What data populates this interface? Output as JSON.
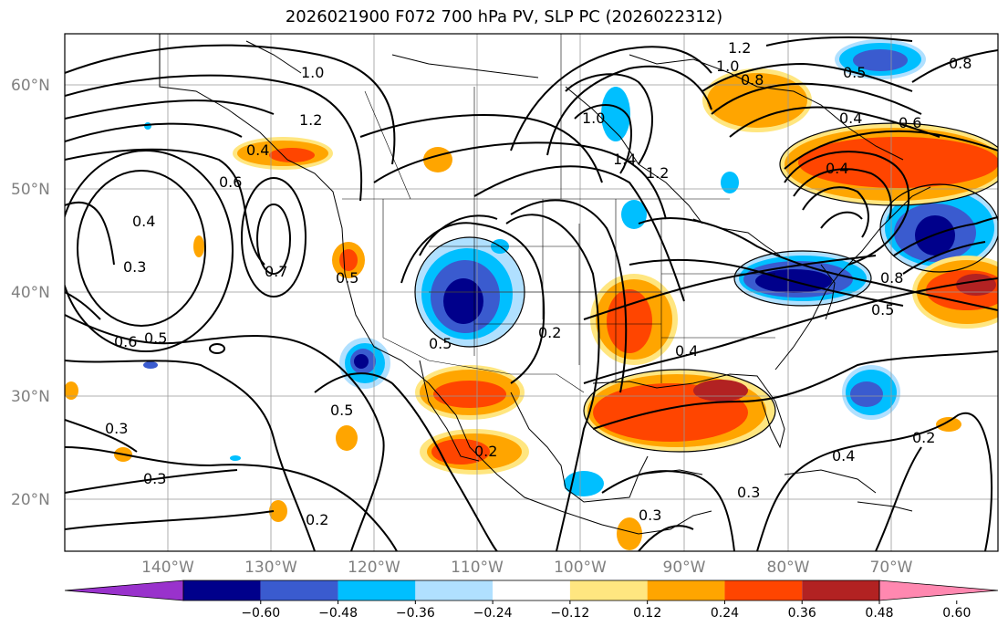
{
  "title": "2026021900 F072 700 hPa PV, SLP PC (2026022312)",
  "lat_labels": [
    "60°N",
    "50°N",
    "40°N",
    "30°N",
    "20°N"
  ],
  "lon_labels": [
    "140°W",
    "130°W",
    "120°W",
    "110°W",
    "100°W",
    "90°W",
    "80°W",
    "70°W"
  ],
  "colorbar": {
    "tick_labels": [
      "−0.60",
      "−0.48",
      "−0.36",
      "−0.24",
      "−0.12",
      "0.12",
      "0.24",
      "0.36",
      "0.48",
      "0.60"
    ],
    "colors": [
      "#9932cc",
      "#00008b",
      "#3a5bcf",
      "#00bfff",
      "#b0e0ff",
      "#ffffff",
      "#ffe680",
      "#ffa500",
      "#ff4500",
      "#b22222",
      "#ff88b0"
    ]
  },
  "contour_labels": [
    {
      "text": "1.0"
    },
    {
      "text": "1.2"
    },
    {
      "text": "0.4"
    },
    {
      "text": "0.6"
    },
    {
      "text": "0.3"
    },
    {
      "text": "0.7"
    },
    {
      "text": "0.5"
    },
    {
      "text": "0.6"
    },
    {
      "text": "0.5"
    },
    {
      "text": "0.3"
    },
    {
      "text": "0.3"
    },
    {
      "text": "0.2"
    },
    {
      "text": "0.5"
    },
    {
      "text": "0.5"
    },
    {
      "text": "0.2"
    },
    {
      "text": "0.2"
    },
    {
      "text": "1.0"
    },
    {
      "text": "1.4"
    },
    {
      "text": "1.2"
    },
    {
      "text": "0.4"
    },
    {
      "text": "0.3"
    },
    {
      "text": "0.3"
    },
    {
      "text": "1.0"
    },
    {
      "text": "1.2"
    },
    {
      "text": "0.8"
    },
    {
      "text": "0.5"
    },
    {
      "text": "0.4"
    },
    {
      "text": "0.6"
    },
    {
      "text": "0.8"
    },
    {
      "text": "0.4"
    },
    {
      "text": "0.8"
    },
    {
      "text": "0.5"
    },
    {
      "text": "0.4"
    },
    {
      "text": "0.2"
    },
    {
      "text": "0.4"
    }
  ]
}
